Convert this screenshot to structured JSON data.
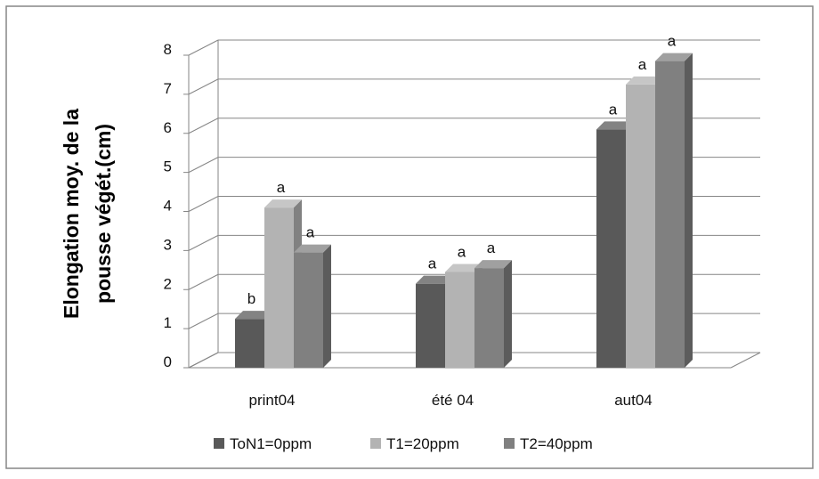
{
  "chart_data": {
    "type": "bar",
    "title": "",
    "xlabel": "",
    "ylabel_lines": [
      "Elongation moy. de la",
      "pousse végét.(cm)"
    ],
    "ylim": [
      0,
      8
    ],
    "yticks": [
      "0",
      "1",
      "2",
      "3",
      "4",
      "5",
      "6",
      "7",
      "8"
    ],
    "grid": true,
    "legend_position": "bottom",
    "categories": [
      "print04",
      "été 04",
      "aut04"
    ],
    "series": [
      {
        "name": "ToN1=0ppm",
        "color": "#595959",
        "values": [
          1.25,
          2.15,
          6.1
        ],
        "labels": [
          "b",
          "a",
          "a"
        ]
      },
      {
        "name": "T1=20ppm",
        "color": "#b3b3b3",
        "values": [
          4.1,
          2.45,
          7.25
        ],
        "labels": [
          "a",
          "a",
          "a"
        ]
      },
      {
        "name": "T2=40ppm",
        "color": "#808080",
        "values": [
          2.95,
          2.55,
          7.85
        ],
        "labels": [
          "a",
          "a",
          "a"
        ]
      }
    ]
  }
}
